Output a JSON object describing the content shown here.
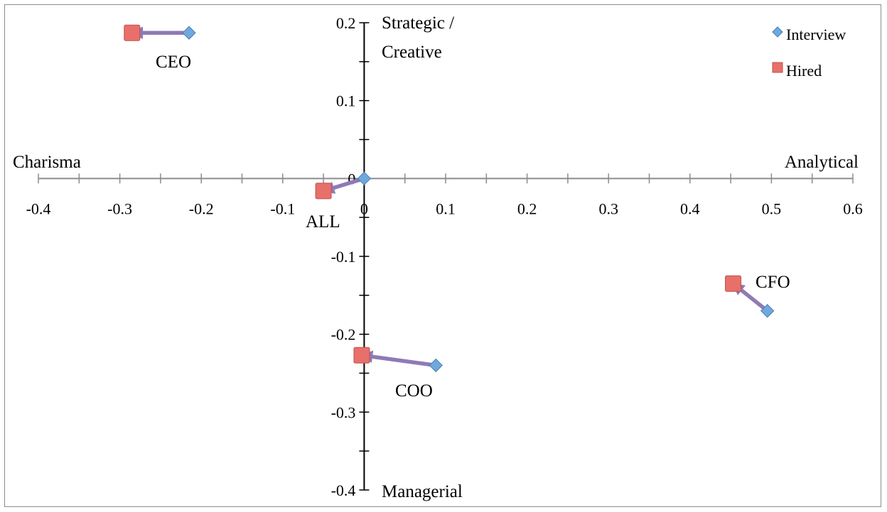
{
  "colors": {
    "interview": "#6fa8dc",
    "interview_stroke": "#4a7fb5",
    "hired": "#e8706a",
    "hired_stroke": "#c0504d",
    "arrow": "#8f7ab6",
    "axis": "#000000",
    "x_axis": "#8c8c8c"
  },
  "chart_data": {
    "type": "scatter",
    "title": "",
    "xlim": [
      -0.4,
      0.6
    ],
    "ylim": [
      -0.4,
      0.2
    ],
    "x_ticks": [
      -0.4,
      -0.3,
      -0.2,
      -0.1,
      0,
      0.1,
      0.2,
      0.3,
      0.4,
      0.5,
      0.6
    ],
    "x_tick_labels": [
      "-0.4",
      "-0.3",
      "-0.2",
      "-0.1",
      "0",
      "0.1",
      "0.2",
      "0.3",
      "0.4",
      "0.5",
      "0.6"
    ],
    "y_ticks": [
      0.2,
      0.1,
      0,
      -0.1,
      -0.2,
      -0.3,
      -0.4
    ],
    "y_tick_labels": [
      "0.2",
      "0.1",
      "0",
      "-0.1",
      "-0.2",
      "-0.3",
      "-0.4"
    ],
    "grid": false,
    "axis_titles": {
      "left": "Charisma",
      "right": "Analytical",
      "top_line1": "Strategic /",
      "top_line2": "Creative",
      "bottom": "Managerial"
    },
    "legend_position": "top-right",
    "series": [
      {
        "name": "Interview",
        "marker": "diamond",
        "points": [
          {
            "label": "CEO",
            "x": -0.215,
            "y": 0.187
          },
          {
            "label": "ALL",
            "x": 0.0,
            "y": 0.0
          },
          {
            "label": "COO",
            "x": 0.088,
            "y": -0.24
          },
          {
            "label": "CFO",
            "x": 0.495,
            "y": -0.17
          }
        ]
      },
      {
        "name": "Hired",
        "marker": "square",
        "points": [
          {
            "label": "CEO",
            "x": -0.285,
            "y": 0.187
          },
          {
            "label": "ALL",
            "x": -0.05,
            "y": -0.016
          },
          {
            "label": "COO",
            "x": -0.003,
            "y": -0.227
          },
          {
            "label": "CFO",
            "x": 0.453,
            "y": -0.135
          }
        ]
      }
    ],
    "point_labels": [
      "CEO",
      "ALL",
      "COO",
      "CFO"
    ]
  }
}
